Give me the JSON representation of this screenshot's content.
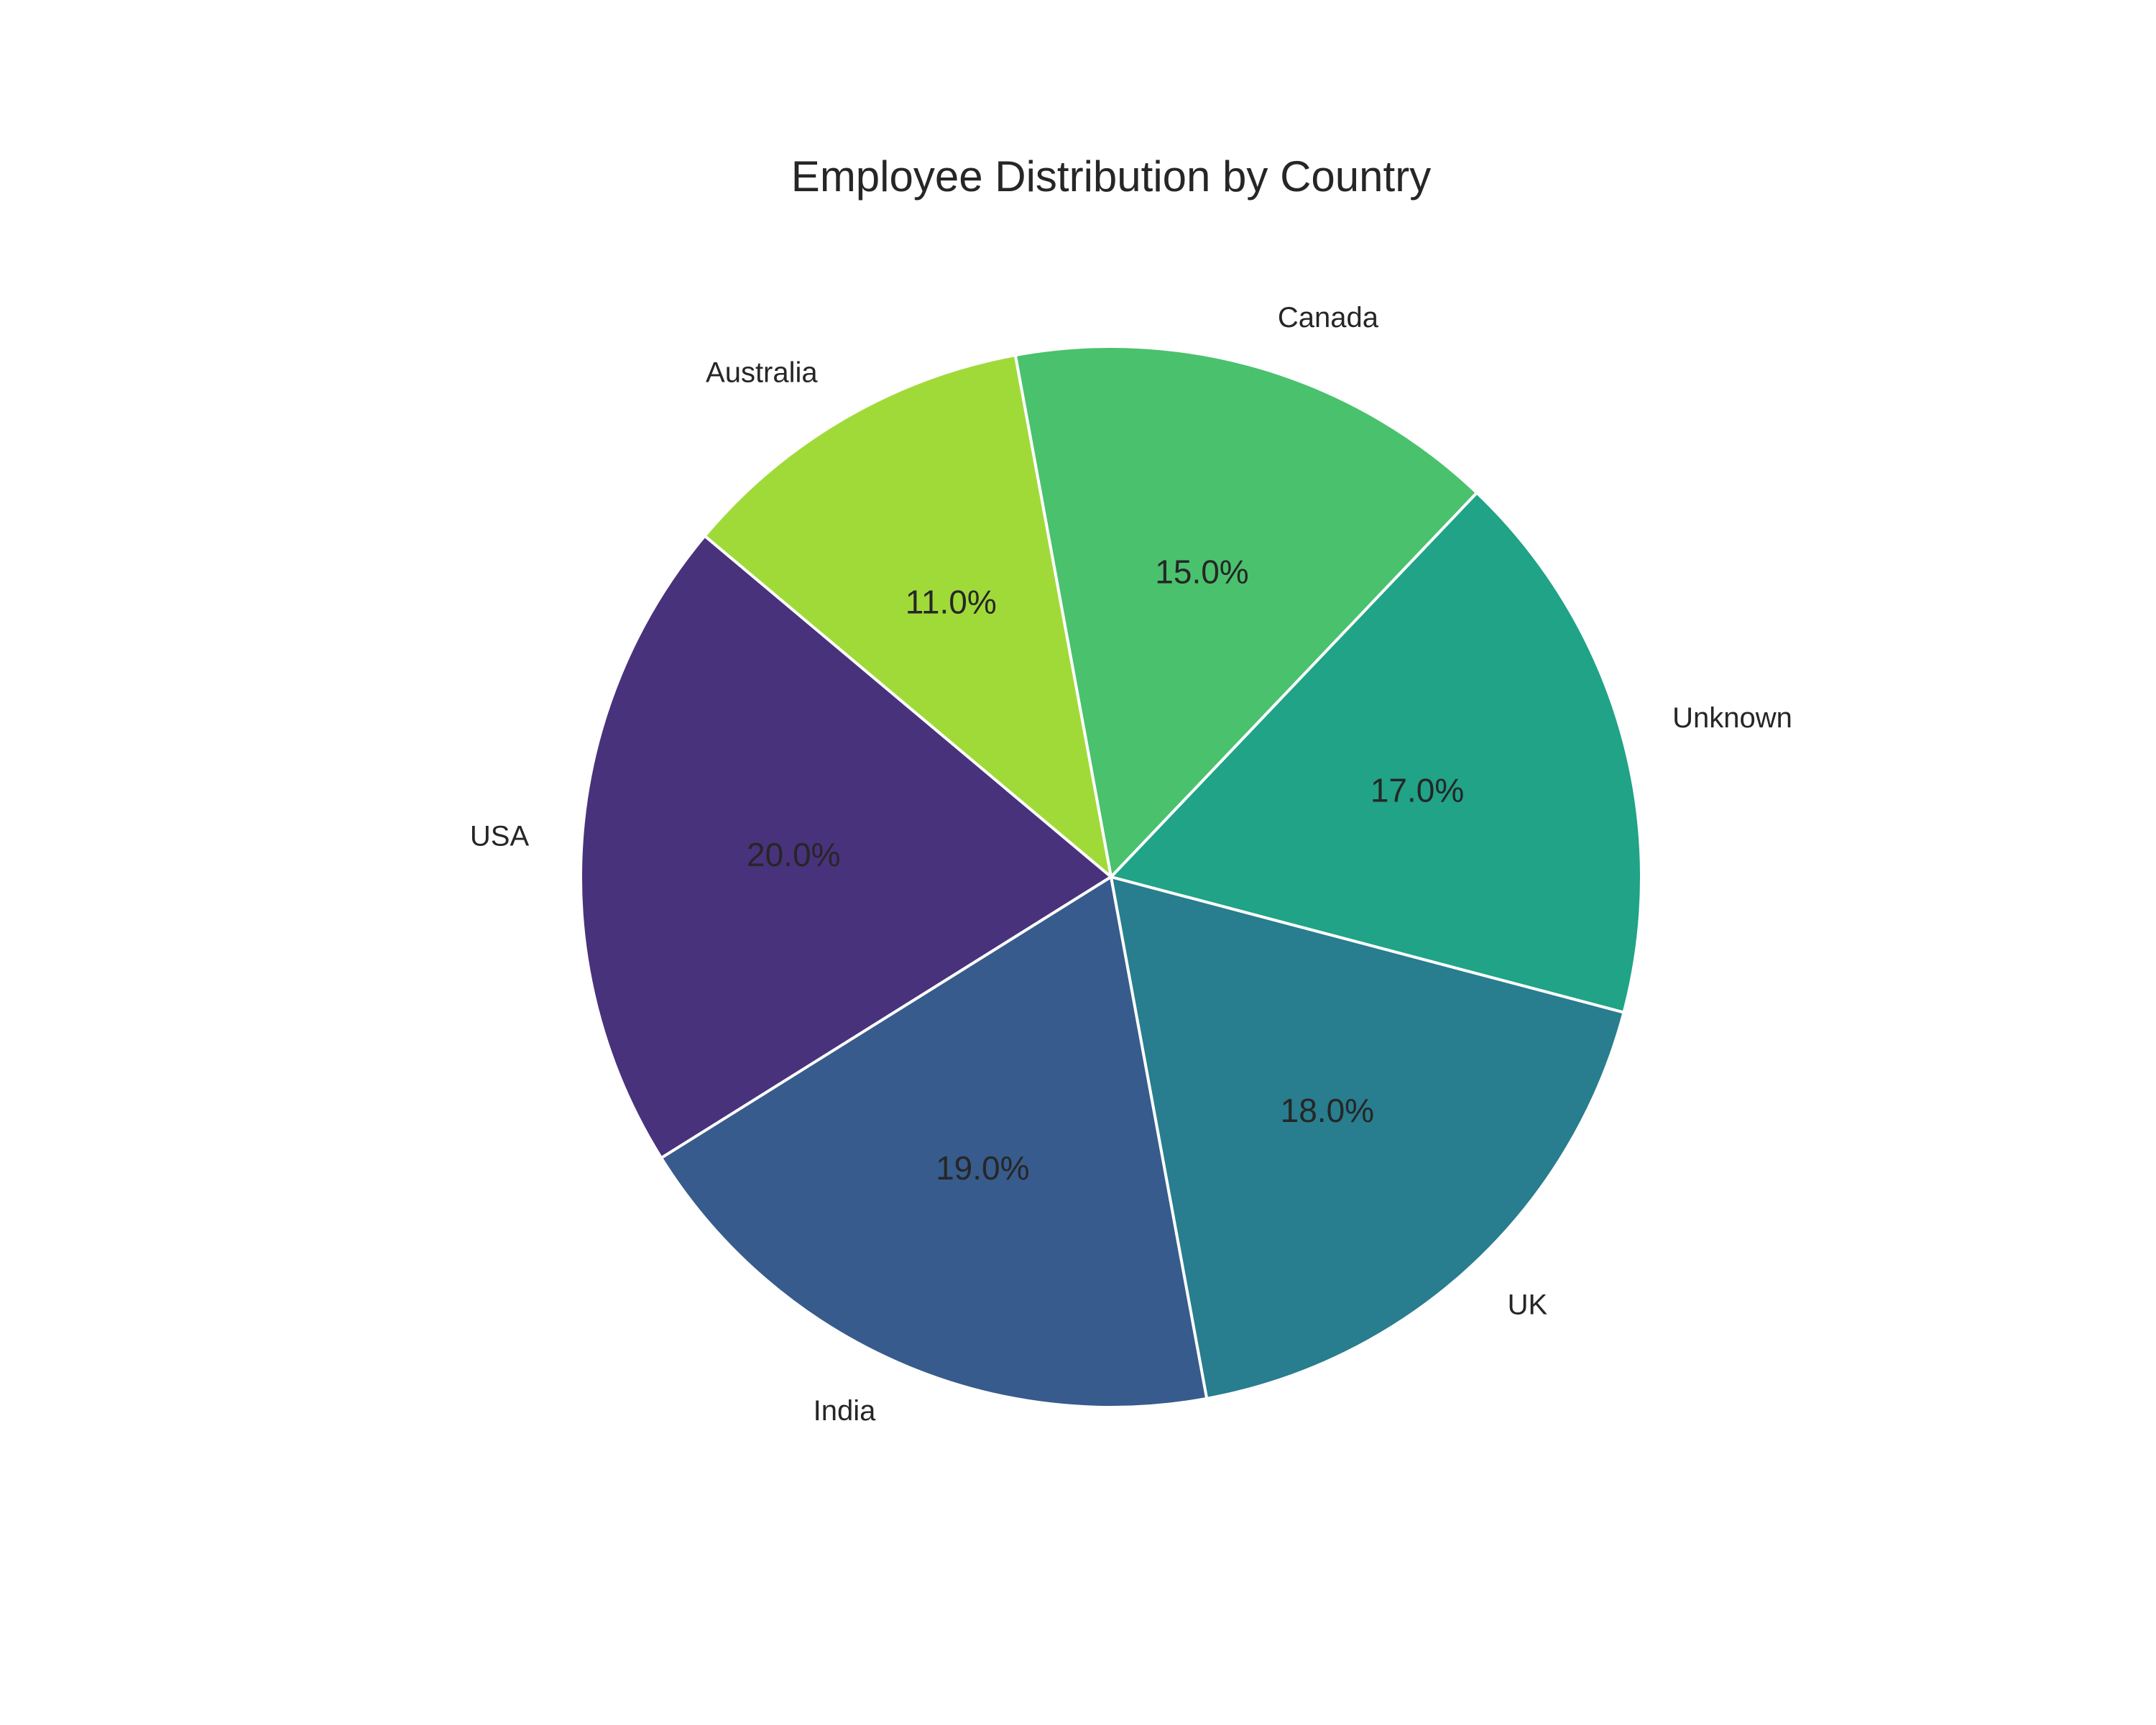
{
  "chart_data": {
    "type": "pie",
    "title": "Employee Distribution by Country",
    "slices": [
      {
        "label": "USA",
        "value": 20.0,
        "pct_label": "20.0%",
        "color": "#48327c"
      },
      {
        "label": "India",
        "value": 19.0,
        "pct_label": "19.0%",
        "color": "#375b8c"
      },
      {
        "label": "UK",
        "value": 18.0,
        "pct_label": "18.0%",
        "color": "#287d8e"
      },
      {
        "label": "Unknown",
        "value": 17.0,
        "pct_label": "17.0%",
        "color": "#20a386"
      },
      {
        "label": "Canada",
        "value": 15.0,
        "pct_label": "15.0%",
        "color": "#4ac16d"
      },
      {
        "label": "Australia",
        "value": 11.0,
        "pct_label": "11.0%",
        "color": "#a0da39"
      }
    ],
    "start_angle_deg": 140,
    "direction": "counterclockwise",
    "legend": "none"
  }
}
